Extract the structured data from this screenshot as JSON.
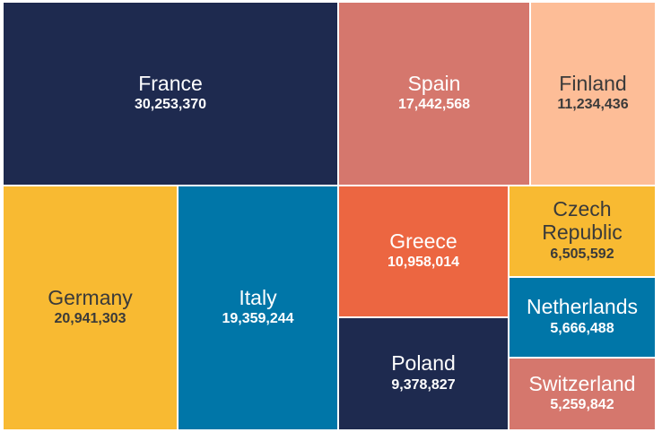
{
  "chart_data": {
    "type": "treemap",
    "title": "",
    "items": [
      {
        "name": "France",
        "value": "30,253,370",
        "amount": 30253370,
        "color": "#1e2a4f",
        "text_color": "#ffffff"
      },
      {
        "name": "Spain",
        "value": "17,442,568",
        "amount": 17442568,
        "color": "#d5776d",
        "text_color": "#ffffff"
      },
      {
        "name": "Finland",
        "value": "11,234,436",
        "amount": 11234436,
        "color": "#fdbd97",
        "text_color": "#3a3a3a"
      },
      {
        "name": "Germany",
        "value": "20,941,303",
        "amount": 20941303,
        "color": "#f8ba32",
        "text_color": "#3a3a3a"
      },
      {
        "name": "Italy",
        "value": "19,359,244",
        "amount": 19359244,
        "color": "#0076a8",
        "text_color": "#ffffff"
      },
      {
        "name": "Greece",
        "value": "10,958,014",
        "amount": 10958014,
        "color": "#ec6641",
        "text_color": "#ffffff"
      },
      {
        "name": "Czech\nRepublic",
        "value": "6,505,592",
        "amount": 6505592,
        "color": "#f8ba32",
        "text_color": "#3a3a3a"
      },
      {
        "name": "Netherlands",
        "value": "5,666,488",
        "amount": 5666488,
        "color": "#0076a8",
        "text_color": "#ffffff"
      },
      {
        "name": "Poland",
        "value": "9,378,827",
        "amount": 9378827,
        "color": "#1e2a4f",
        "text_color": "#ffffff"
      },
      {
        "name": "Switzerland",
        "value": "5,259,842",
        "amount": 5259842,
        "color": "#d5776d",
        "text_color": "#ffffff"
      }
    ]
  }
}
